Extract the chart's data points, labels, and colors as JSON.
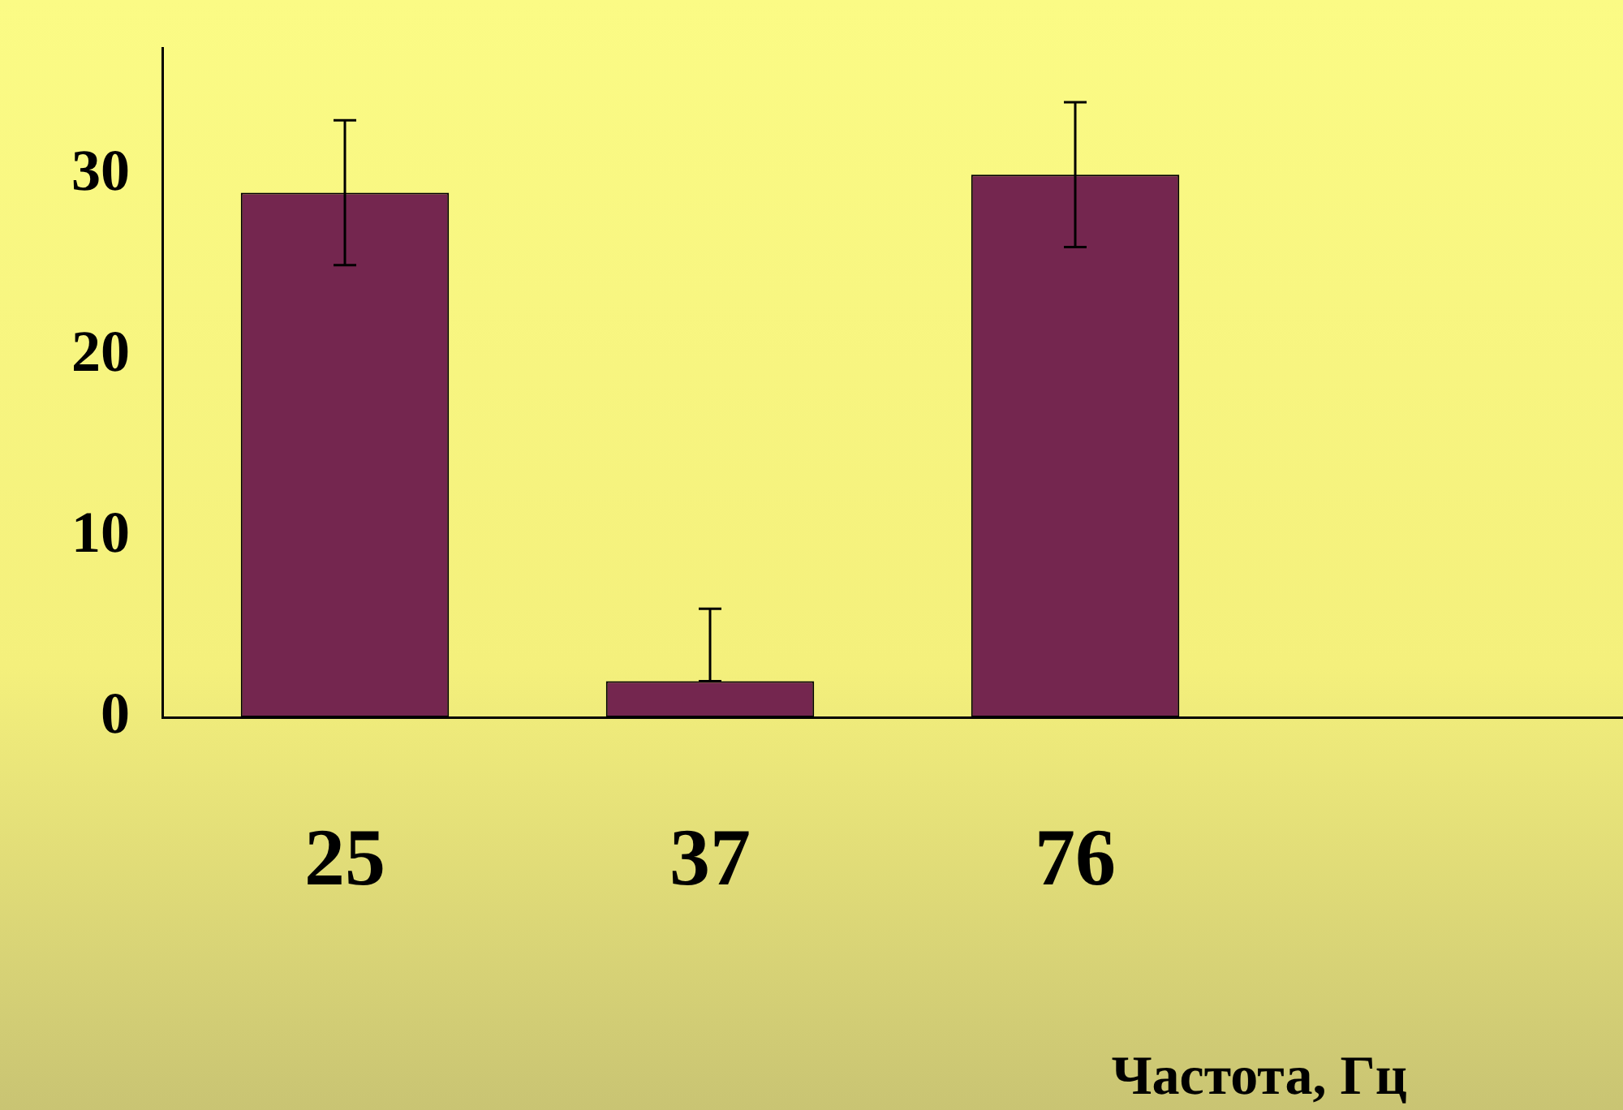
{
  "chart_data": {
    "type": "bar",
    "xlabel": "Частота, Гц",
    "categories": [
      "25",
      "37",
      "76",
      null
    ],
    "values": [
      29,
      2,
      30,
      null
    ],
    "errors": [
      4,
      [
        2,
        6
      ],
      4,
      null
    ],
    "color": "#74264f",
    "ylim": [
      0,
      37
    ],
    "yticks": [
      0,
      10,
      20,
      30
    ],
    "grid": false,
    "legend": false
  }
}
